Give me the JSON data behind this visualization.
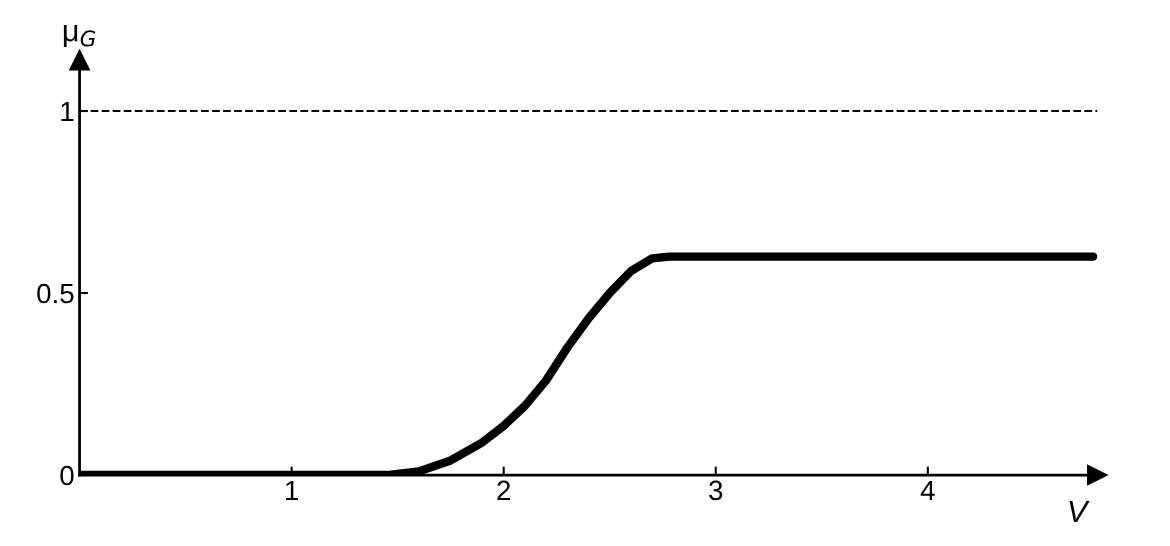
{
  "chart_data": {
    "type": "line",
    "xlabel": "V",
    "ylabel": "μ$_{G}$",
    "x": [
      0,
      1.45,
      1.6,
      1.75,
      1.9,
      2.0,
      2.1,
      2.2,
      2.3,
      2.4,
      2.5,
      2.6,
      2.7,
      2.78,
      4.78
    ],
    "series": [
      {
        "color": "#000000",
        "values": [
          0,
          0,
          0.01,
          0.04,
          0.09,
          0.135,
          0.19,
          0.26,
          0.35,
          0.43,
          0.5,
          0.56,
          0.595,
          0.6,
          0.6
        ]
      }
    ],
    "xlim": [
      0,
      4.8
    ],
    "ylim": [
      0,
      1.14
    ],
    "xticks": [
      1,
      2,
      3,
      4
    ],
    "yticks": [
      0,
      0.5,
      1
    ],
    "ref_lines": [
      {
        "axis": "y",
        "value": 1,
        "color": "#000000",
        "line_style": "dashed"
      }
    ],
    "grid": false,
    "legend": false,
    "marker": "none",
    "line_style": "solid"
  }
}
